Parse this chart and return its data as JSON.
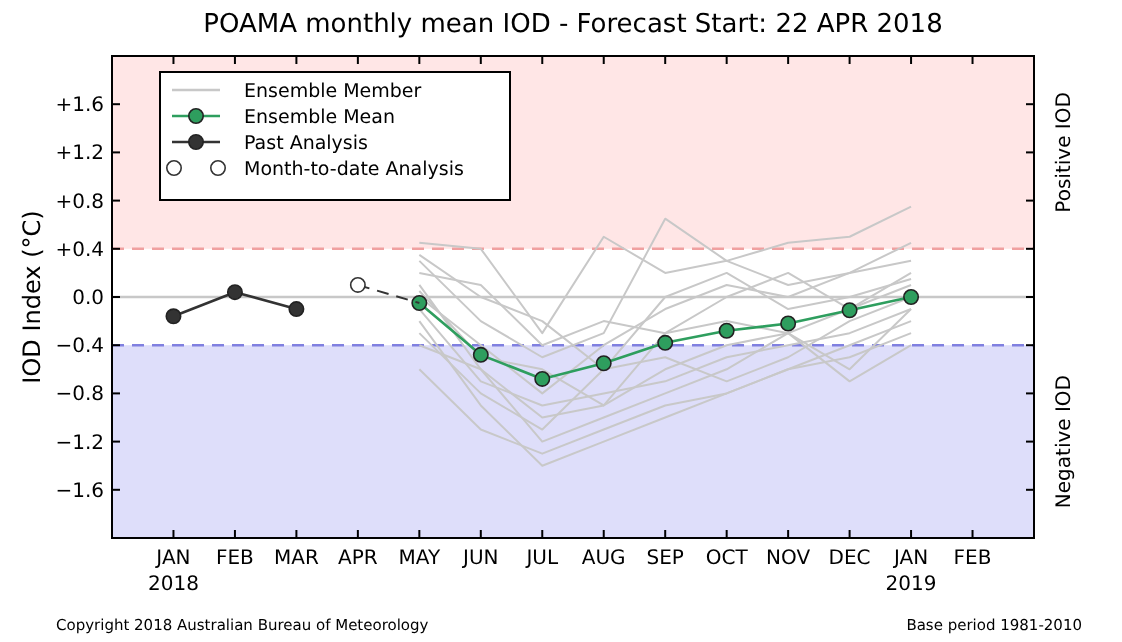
{
  "chart_data": {
    "type": "line",
    "title": "POAMA monthly mean IOD - Forecast Start: 22 APR 2018",
    "ylabel": "IOD Index (°C)",
    "categories": [
      null,
      "JAN\n2018",
      "FEB",
      "MAR",
      "APR",
      "MAY",
      "JUN",
      "JUL",
      "AUG",
      "SEP",
      "OCT",
      "NOV",
      "DEC",
      "JAN\n2019",
      "FEB",
      null
    ],
    "ylim": [
      -2,
      2
    ],
    "yticks": [
      {
        "value": -1.6,
        "label": "−1.6"
      },
      {
        "value": -1.2,
        "label": "−1.2"
      },
      {
        "value": -0.8,
        "label": "−0.8"
      },
      {
        "value": -0.4,
        "label": "−0.4"
      },
      {
        "value": 0,
        "label": "0.0"
      },
      {
        "value": 0.4,
        "label": "+0.4"
      },
      {
        "value": 0.8,
        "label": "+0.8"
      },
      {
        "value": 1.2,
        "label": "+1.2"
      },
      {
        "value": 1.6,
        "label": "+1.6"
      }
    ],
    "grid": false,
    "legend": "top left",
    "bands": [
      {
        "axis": "y",
        "from": 0.4,
        "to": 2,
        "label": "Positive IOD",
        "color": "#ffe6e6"
      },
      {
        "axis": "y",
        "from": -2,
        "to": -0.4,
        "label": "Negative IOD",
        "color": "#dedefa"
      }
    ],
    "ref_lines": [
      {
        "axis": "y",
        "value": 0,
        "color": "#c8c8c8",
        "line_style": "solid"
      },
      {
        "axis": "y",
        "value": 0.4,
        "color": "#f0a0a0",
        "line_style": "dashed"
      },
      {
        "axis": "y",
        "value": -0.4,
        "color": "#8080e0",
        "line_style": "dashed"
      }
    ],
    "series": [
      {
        "name": "Ensemble Member",
        "type": "line",
        "color": "#c8c8c8",
        "marker": "none",
        "values": [
          null,
          null,
          null,
          null,
          null,
          0.45,
          0.4,
          -0.3,
          0.5,
          0.2,
          0.3,
          0.45,
          0.5,
          0.75,
          null,
          null
        ]
      },
      {
        "type": "line",
        "color": "#c8c8c8",
        "marker": "none",
        "values": [
          null,
          null,
          null,
          null,
          null,
          0.3,
          -0.2,
          -0.5,
          -0.3,
          0.65,
          0.3,
          0.1,
          0.2,
          0.45,
          null,
          null
        ]
      },
      {
        "type": "line",
        "color": "#c8c8c8",
        "marker": "none",
        "values": [
          null,
          null,
          null,
          null,
          null,
          0.1,
          -0.6,
          -1.0,
          -0.9,
          -0.6,
          -0.4,
          -0.3,
          -0.1,
          0.1,
          null,
          null
        ]
      },
      {
        "type": "line",
        "color": "#c8c8c8",
        "marker": "none",
        "values": [
          null,
          null,
          null,
          null,
          null,
          -0.2,
          -0.9,
          -1.4,
          -1.2,
          -1.0,
          -0.8,
          -0.6,
          -0.4,
          -0.2,
          null,
          null
        ]
      },
      {
        "type": "line",
        "color": "#c8c8c8",
        "marker": "none",
        "values": [
          null,
          null,
          null,
          null,
          null,
          -0.6,
          -1.1,
          -1.3,
          -1.1,
          -0.9,
          -0.8,
          -0.6,
          -0.5,
          -0.3,
          null,
          null
        ]
      },
      {
        "type": "line",
        "color": "#c8c8c8",
        "marker": "none",
        "values": [
          null,
          null,
          null,
          null,
          null,
          0.0,
          -0.4,
          -0.8,
          -0.4,
          -0.1,
          0.1,
          0.0,
          0.2,
          0.3,
          null,
          null
        ]
      },
      {
        "type": "line",
        "color": "#c8c8c8",
        "marker": "none",
        "values": [
          null,
          null,
          null,
          null,
          null,
          -0.1,
          -0.7,
          -0.9,
          -0.8,
          -0.7,
          -0.5,
          -0.4,
          -0.3,
          -0.1,
          null,
          null
        ]
      },
      {
        "type": "line",
        "color": "#c8c8c8",
        "marker": "none",
        "values": [
          null,
          null,
          null,
          null,
          null,
          0.2,
          0.1,
          -0.4,
          -0.2,
          -0.3,
          0.0,
          0.2,
          -0.1,
          0.2,
          null,
          null
        ]
      },
      {
        "type": "line",
        "color": "#c8c8c8",
        "marker": "none",
        "values": [
          null,
          null,
          null,
          null,
          null,
          -0.3,
          -0.8,
          -1.1,
          -0.6,
          -0.5,
          -0.7,
          -0.5,
          -0.2,
          0.0,
          null,
          null
        ]
      },
      {
        "type": "line",
        "color": "#c8c8c8",
        "marker": "none",
        "values": [
          null,
          null,
          null,
          null,
          null,
          0.05,
          -0.5,
          -0.6,
          -0.9,
          -0.3,
          -0.2,
          -0.3,
          -0.7,
          -0.4,
          null,
          null
        ]
      },
      {
        "type": "line",
        "color": "#c8c8c8",
        "marker": "none",
        "values": [
          null,
          null,
          null,
          null,
          null,
          -0.4,
          -0.6,
          -1.2,
          -1.0,
          -0.8,
          -0.6,
          -0.3,
          -0.6,
          -0.1,
          null,
          null
        ]
      },
      {
        "type": "line",
        "color": "#c8c8c8",
        "marker": "none",
        "values": [
          null,
          null,
          null,
          null,
          null,
          0.35,
          0.0,
          -0.2,
          -0.6,
          0.0,
          0.2,
          -0.1,
          0.0,
          0.15,
          null,
          null
        ]
      },
      {
        "name": "Ensemble Mean",
        "type": "line",
        "color": "#2e9e5e",
        "marker": "circle",
        "values": [
          null,
          null,
          null,
          null,
          null,
          -0.05,
          -0.48,
          -0.68,
          -0.55,
          -0.38,
          -0.28,
          -0.22,
          -0.11,
          0.0,
          null,
          null
        ]
      },
      {
        "name": "Past Analysis",
        "type": "line",
        "color": "#333333",
        "marker": "circle",
        "values": [
          null,
          -0.16,
          0.04,
          -0.1,
          null,
          null,
          null,
          null,
          null,
          null,
          null,
          null,
          null,
          null,
          null,
          null
        ]
      },
      {
        "color": "#333333",
        "marker": "none",
        "line_style": "dashed",
        "values": [
          null,
          null,
          null,
          null,
          0.1,
          -0.05,
          null,
          null,
          null,
          null,
          null,
          null,
          null,
          null,
          null,
          null
        ]
      },
      {
        "name": "Month-to-date Analysis",
        "type": "scatter",
        "color": "#ffffff",
        "marker": "circle",
        "values": [
          null,
          null,
          null,
          null,
          0.1,
          null,
          null,
          null,
          null,
          null,
          null,
          null,
          null,
          null,
          null,
          null
        ]
      }
    ],
    "annotations": [
      "Copyright 2018 Australian Bureau of Meteorology",
      "Base period 1981-2010"
    ]
  }
}
